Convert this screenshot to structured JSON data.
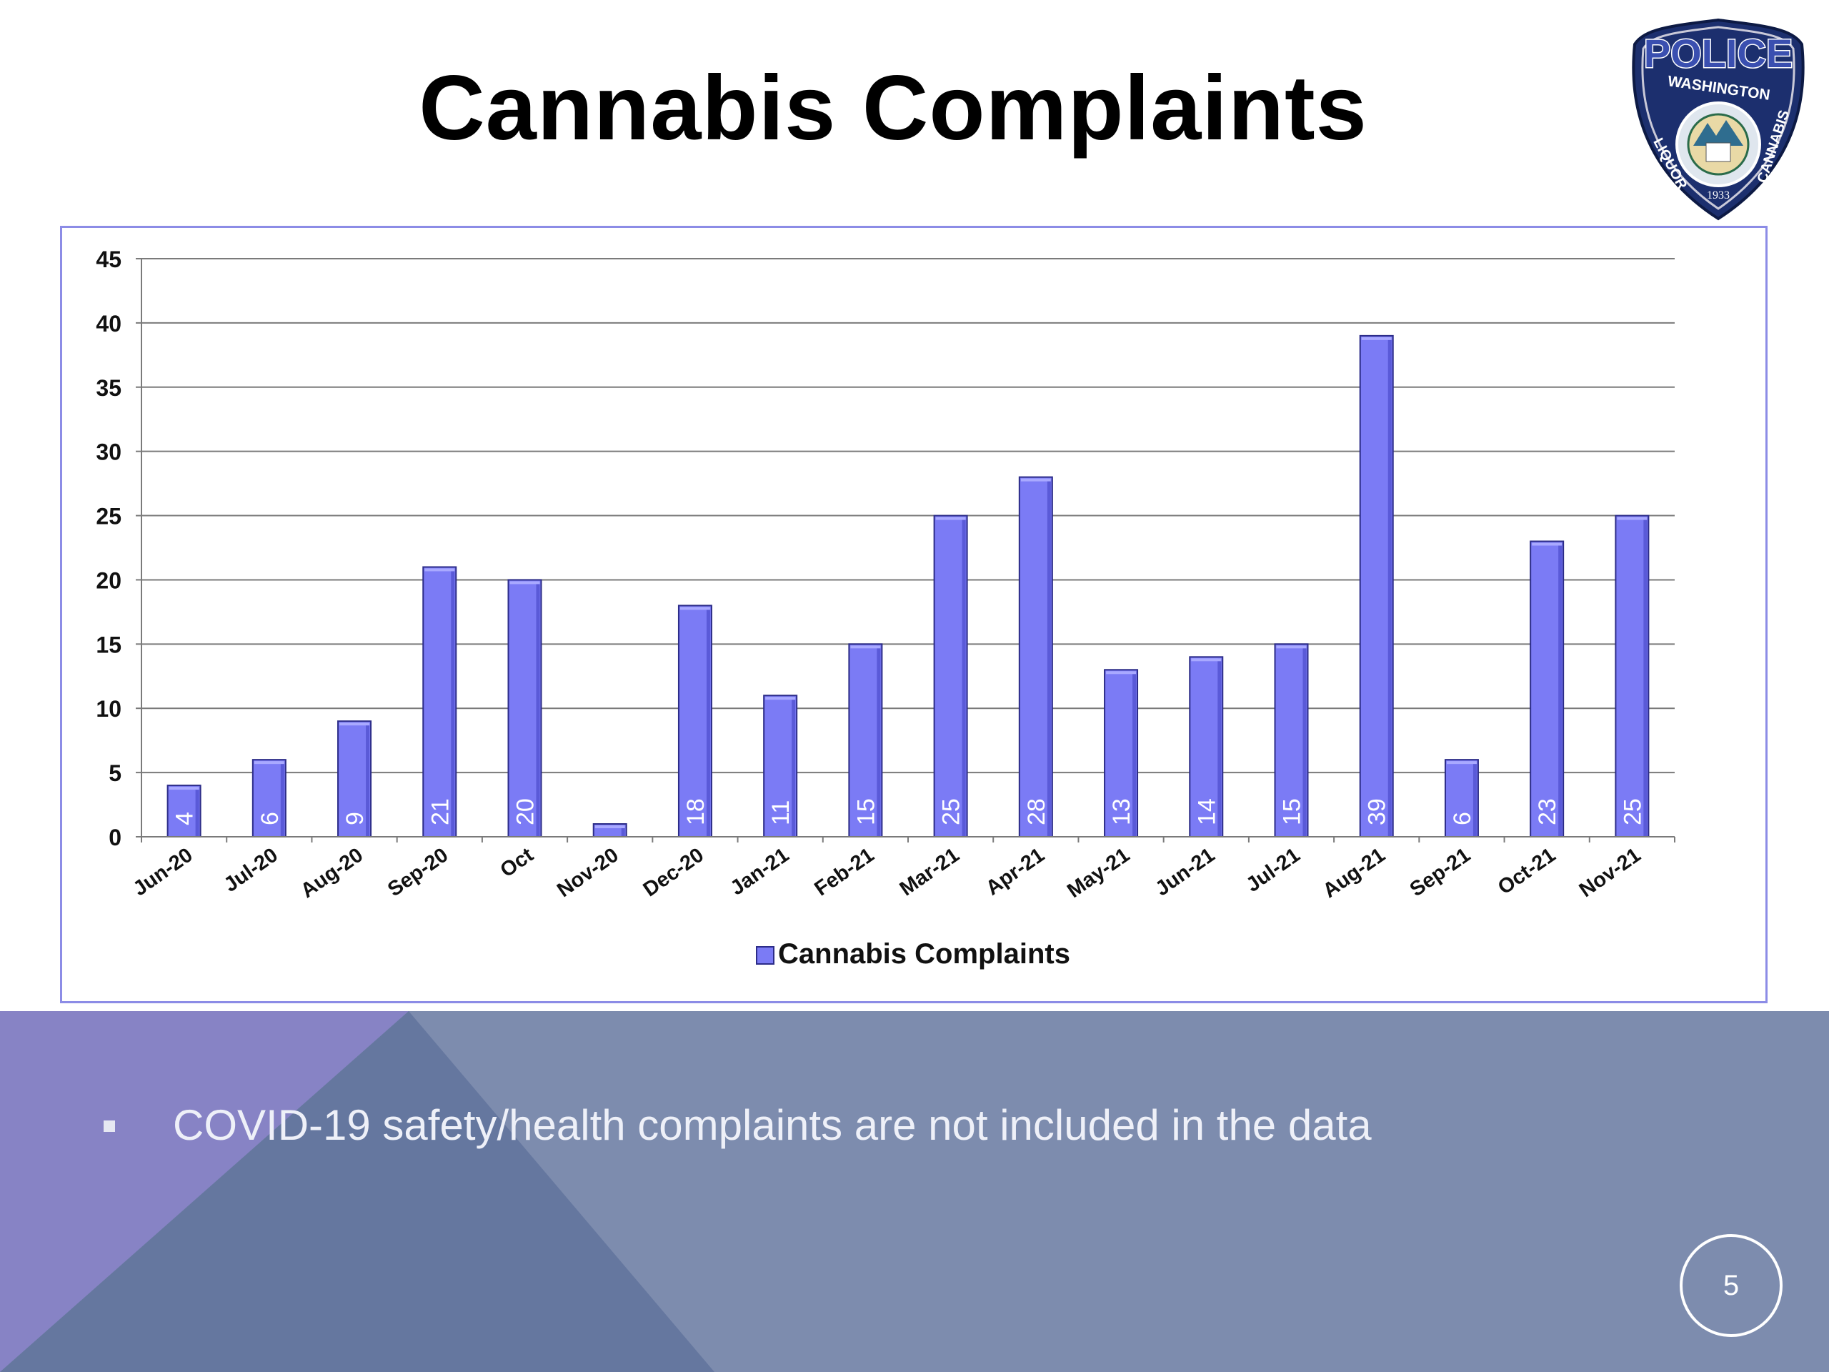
{
  "slide": {
    "title": "Cannabis Complaints",
    "bullet": "COVID-19 safety/health complaints are not included in the data",
    "page_number": "5"
  },
  "logo": {
    "top_text": "POLICE",
    "ring_text": "WASHINGTON",
    "left_text": "LIQUOR",
    "right_text": "CANNABIS",
    "year": "1933"
  },
  "colors": {
    "bar": "#7b7bf5",
    "bar_edge": "#2c2c88",
    "footer_bg": "#7d8cae",
    "footer_triangle_dark": "#65779f",
    "footer_triangle_purple": "#8783c5"
  },
  "chart_data": {
    "type": "bar",
    "title": "",
    "xlabel": "",
    "ylabel": "",
    "categories": [
      "Jun-20",
      "Jul-20",
      "Aug-20",
      "Sep-20",
      "Oct",
      "Nov-20",
      "Dec-20",
      "Jan-21",
      "Feb-21",
      "Mar-21",
      "Apr-21",
      "May-21",
      "Jun-21",
      "Jul-21",
      "Aug-21",
      "Sep-21",
      "Oct-21",
      "Nov-21"
    ],
    "series": [
      {
        "name": "Cannabis Complaints",
        "values": [
          4,
          6,
          9,
          21,
          20,
          1,
          18,
          11,
          15,
          25,
          28,
          13,
          14,
          15,
          39,
          6,
          23,
          25
        ],
        "data_labels": [
          "4",
          "6",
          "9",
          "21",
          "20",
          "",
          "18",
          "11",
          "15",
          "25",
          "28",
          "13",
          "14",
          "15",
          "39",
          "6",
          "23",
          "25"
        ]
      }
    ],
    "ylim": [
      0,
      45
    ],
    "yticks": [
      0,
      5,
      10,
      15,
      20,
      25,
      30,
      35,
      40,
      45
    ],
    "grid": true,
    "legend_position": "bottom"
  }
}
